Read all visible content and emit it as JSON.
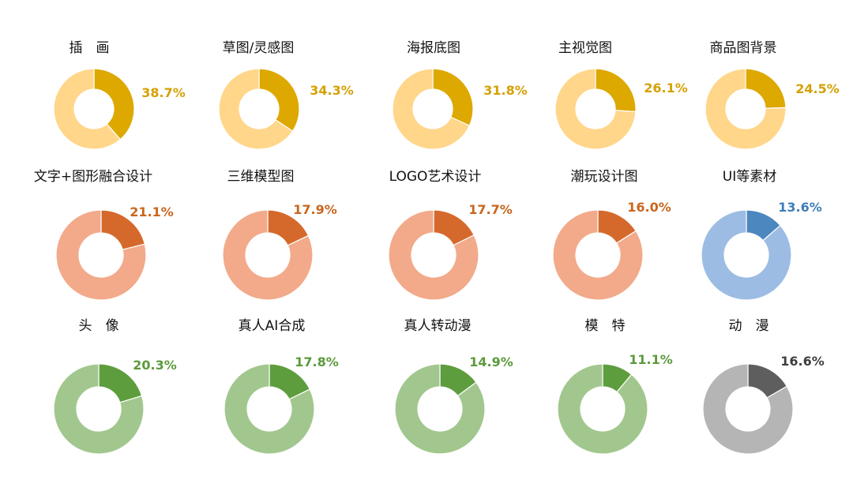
{
  "chart_data": [
    {
      "type": "pie",
      "variant": "donut",
      "title": "插　画",
      "values": [
        38.7,
        61.3
      ],
      "label": "38.7%",
      "colors": [
        "#DDA800",
        "#FFD68A"
      ],
      "label_color": "#D4A106"
    },
    {
      "type": "pie",
      "variant": "donut",
      "title": "草图/灵感图",
      "values": [
        34.3,
        65.7
      ],
      "label": "34.3%",
      "colors": [
        "#DDA800",
        "#FFD68A"
      ],
      "label_color": "#D4A106"
    },
    {
      "type": "pie",
      "variant": "donut",
      "title": "海报底图",
      "values": [
        31.8,
        68.2
      ],
      "label": "31.8%",
      "colors": [
        "#DDA800",
        "#FFD68A"
      ],
      "label_color": "#D4A106"
    },
    {
      "type": "pie",
      "variant": "donut",
      "title": "主视觉图",
      "values": [
        26.1,
        73.9
      ],
      "label": "26.1%",
      "colors": [
        "#DDA800",
        "#FFD68A"
      ],
      "label_color": "#D4A106"
    },
    {
      "type": "pie",
      "variant": "donut",
      "title": "商品图背景",
      "values": [
        24.5,
        75.5
      ],
      "label": "24.5%",
      "colors": [
        "#DDA800",
        "#FFD68A"
      ],
      "label_color": "#D4A106"
    },
    {
      "type": "pie",
      "variant": "donut",
      "title": "文字+图形融合设计",
      "values": [
        21.1,
        78.9
      ],
      "label": "21.1%",
      "colors": [
        "#D5692B",
        "#F2AA8A"
      ],
      "label_color": "#C8661F"
    },
    {
      "type": "pie",
      "variant": "donut",
      "title": "三维模型图",
      "values": [
        17.9,
        82.1
      ],
      "label": "17.9%",
      "colors": [
        "#D5692B",
        "#F2AA8A"
      ],
      "label_color": "#C8661F"
    },
    {
      "type": "pie",
      "variant": "donut",
      "title": "LOGO艺术设计",
      "values": [
        17.7,
        82.3
      ],
      "label": "17.7%",
      "colors": [
        "#D5692B",
        "#F2AA8A"
      ],
      "label_color": "#C8661F"
    },
    {
      "type": "pie",
      "variant": "donut",
      "title": "潮玩设计图",
      "values": [
        16.0,
        84.0
      ],
      "label": "16.0%",
      "colors": [
        "#D5692B",
        "#F2AA8A"
      ],
      "label_color": "#C8661F"
    },
    {
      "type": "pie",
      "variant": "donut",
      "title": "UI等素材",
      "values": [
        13.6,
        86.4
      ],
      "label": "13.6%",
      "colors": [
        "#4C87C0",
        "#9CBCE3"
      ],
      "label_color": "#3F7DBA"
    },
    {
      "type": "pie",
      "variant": "donut",
      "title": "头　像",
      "values": [
        20.3,
        79.7
      ],
      "label": "20.3%",
      "colors": [
        "#5E9D3E",
        "#A2C78E"
      ],
      "label_color": "#5C9A3C"
    },
    {
      "type": "pie",
      "variant": "donut",
      "title": "真人AI合成",
      "values": [
        17.8,
        82.2
      ],
      "label": "17.8%",
      "colors": [
        "#5E9D3E",
        "#A2C78E"
      ],
      "label_color": "#5C9A3C"
    },
    {
      "type": "pie",
      "variant": "donut",
      "title": "真人转动漫",
      "values": [
        14.9,
        85.1
      ],
      "label": "14.9%",
      "colors": [
        "#5E9D3E",
        "#A2C78E"
      ],
      "label_color": "#5C9A3C"
    },
    {
      "type": "pie",
      "variant": "donut",
      "title": "模　特",
      "values": [
        11.1,
        88.9
      ],
      "label": "11.1%",
      "colors": [
        "#5E9D3E",
        "#A2C78E"
      ],
      "label_color": "#5C9A3C"
    },
    {
      "type": "pie",
      "variant": "donut",
      "title": "动　漫",
      "values": [
        16.6,
        83.4
      ],
      "label": "16.6%",
      "colors": [
        "#5E5E5E",
        "#B5B5B5"
      ],
      "label_color": "#3F3F3F"
    }
  ]
}
